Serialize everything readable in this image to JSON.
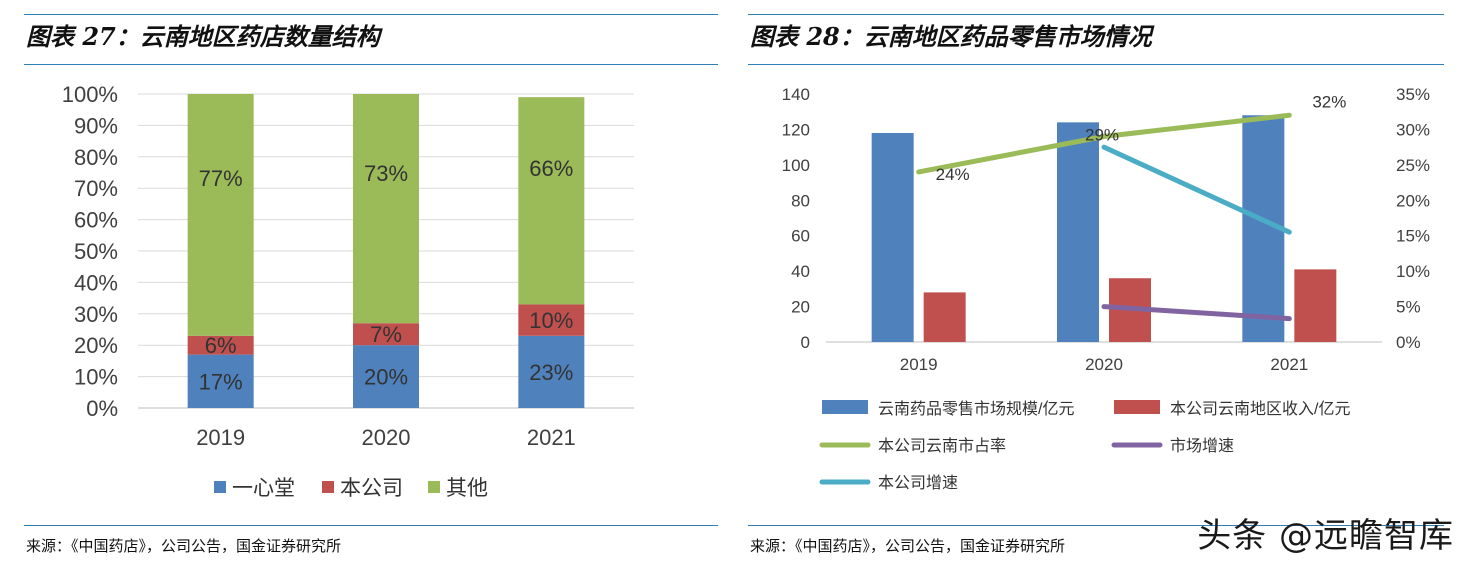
{
  "left": {
    "title": "图表 27：云南地区药店数量结构",
    "source": "来源：《中国药店》，公司公告，国金证券研究所"
  },
  "right": {
    "title": "图表 28：云南地区药品零售市场情况",
    "source": "来源：《中国药店》，公司公告，国金证券研究所"
  },
  "watermark": "头条 @远瞻智库",
  "colors": {
    "blue": "#4f81bd",
    "red": "#c0504d",
    "green": "#9bbb59",
    "purple": "#8064a2",
    "cyan": "#4bacc6",
    "rule": "#2f7fb7"
  },
  "chart_data": [
    {
      "type": "bar",
      "stacked": true,
      "categories": [
        "2019",
        "2020",
        "2021"
      ],
      "series": [
        {
          "name": "一心堂",
          "values": [
            17,
            20,
            23
          ],
          "labels": [
            "17%",
            "20%",
            "23%"
          ]
        },
        {
          "name": "本公司",
          "values": [
            6,
            7,
            10
          ],
          "labels": [
            "6%",
            "7%",
            "10%"
          ]
        },
        {
          "name": "其他",
          "values": [
            77,
            73,
            66
          ],
          "labels": [
            "77%",
            "73%",
            "66%"
          ]
        }
      ],
      "ylim": [
        0,
        100
      ],
      "yticks": [
        "0%",
        "10%",
        "20%",
        "30%",
        "40%",
        "50%",
        "60%",
        "70%",
        "80%",
        "90%",
        "100%"
      ],
      "grid": true,
      "legend": "bottom"
    },
    {
      "type": "bar",
      "categories": [
        "2019",
        "2020",
        "2021"
      ],
      "bar_series": [
        {
          "name": "云南药品零售市场规模/亿元",
          "values": [
            118,
            124,
            128
          ]
        },
        {
          "name": "本公司云南地区收入/亿元",
          "values": [
            28,
            36,
            41
          ]
        }
      ],
      "line_series": [
        {
          "name": "本公司云南市占率",
          "values": [
            24,
            29,
            32
          ],
          "labels": [
            "24%",
            "29%",
            "32%"
          ],
          "axis": "right"
        },
        {
          "name": "市场增速",
          "values": [
            null,
            5,
            3.3
          ],
          "axis": "right"
        },
        {
          "name": "本公司增速",
          "values": [
            null,
            27.5,
            15.5
          ],
          "axis": "right"
        }
      ],
      "ylim_left": [
        0,
        140
      ],
      "yticks_left": [
        "0",
        "20",
        "40",
        "60",
        "80",
        "100",
        "120",
        "140"
      ],
      "ylim_right": [
        0,
        35
      ],
      "yticks_right": [
        "0%",
        "5%",
        "10%",
        "15%",
        "20%",
        "25%",
        "30%",
        "35%"
      ],
      "grid": false,
      "legend": "bottom"
    }
  ]
}
